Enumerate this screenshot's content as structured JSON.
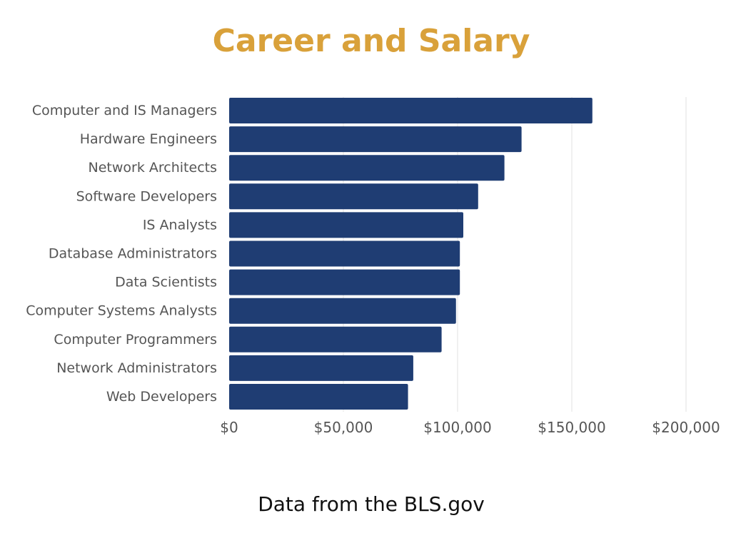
{
  "chart_data": {
    "type": "bar",
    "orientation": "horizontal",
    "title": "Career and Salary",
    "footer": "Data from the BLS.gov",
    "categories": [
      "Computer and IS Managers",
      "Hardware Engineers",
      "Network Architects",
      "Software Developers",
      "IS Analysts",
      "Database Administrators",
      "Data Scientists",
      "Computer Systems Analysts",
      "Computer Programmers",
      "Network Administrators",
      "Web Developers"
    ],
    "values": [
      159000,
      128000,
      120500,
      109000,
      102500,
      101000,
      101000,
      99300,
      93000,
      80600,
      78300
    ],
    "xlim": [
      0,
      200000
    ],
    "xticks": [
      0,
      50000,
      100000,
      150000,
      200000
    ],
    "xtick_labels": [
      "$0",
      "$50,000",
      "$100,000",
      "$150,000",
      "$200,000"
    ],
    "grid": "vertical",
    "legend": "none",
    "bar_color": "#1f3d73",
    "title_color": "#d9a13a",
    "grid_color": "#e6e6e6",
    "label_color": "#555555"
  }
}
